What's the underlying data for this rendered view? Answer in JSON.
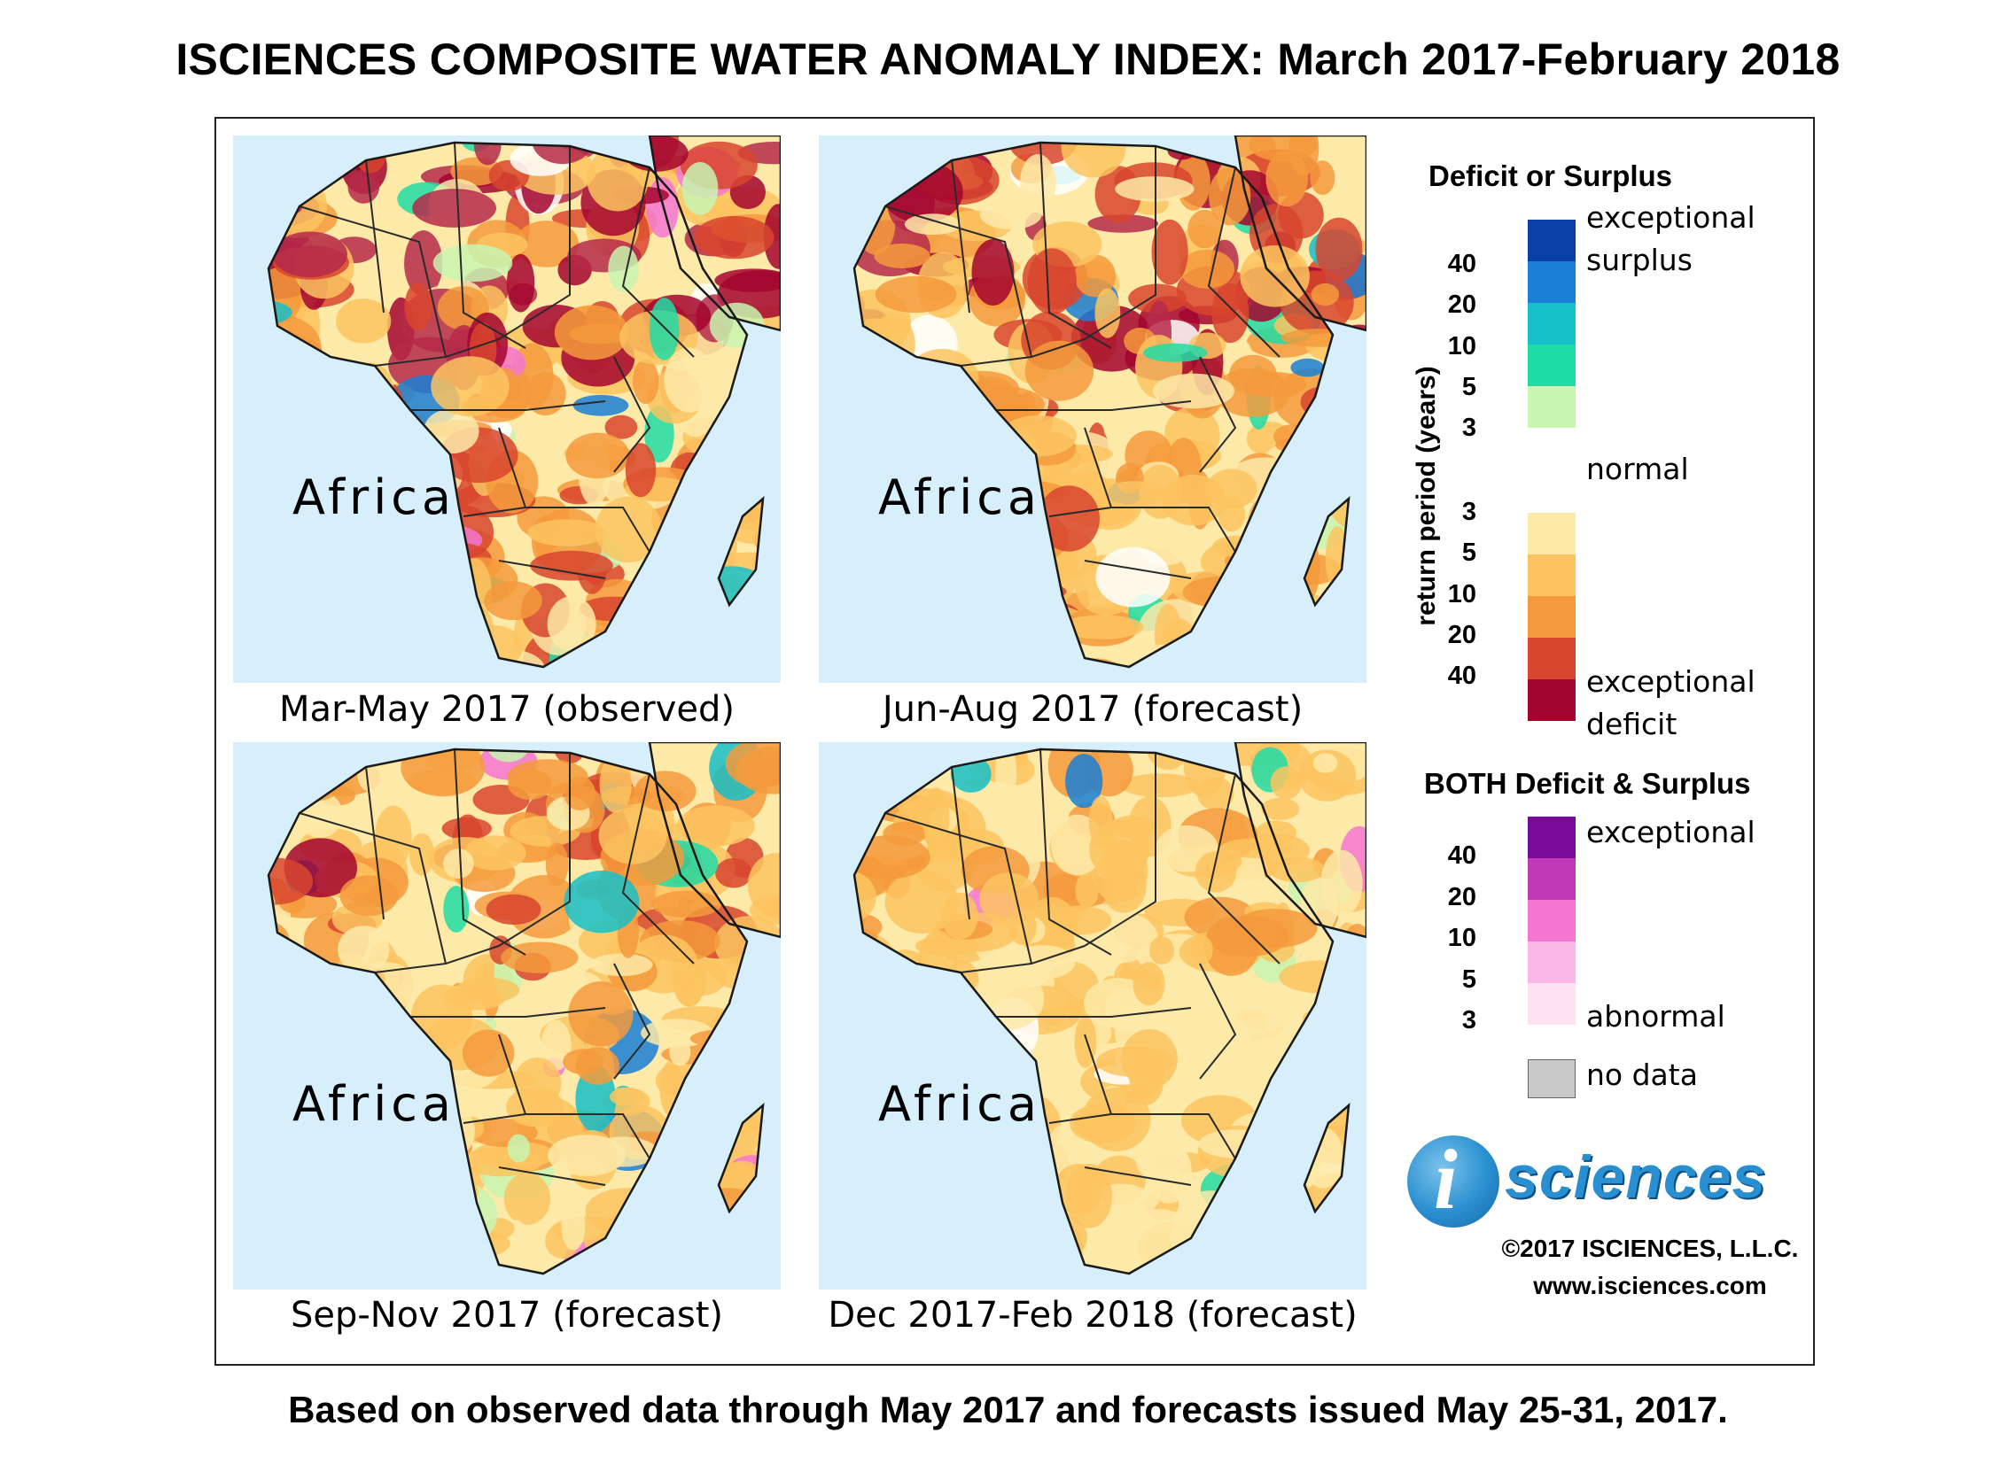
{
  "title": "ISCIENCES COMPOSITE WATER ANOMALY INDEX: March 2017-February 2018",
  "panels": [
    {
      "region": "Africa",
      "caption": "Mar-May 2017 (observed)",
      "intensity": 0.95
    },
    {
      "region": "Africa",
      "caption": "Jun-Aug 2017 (forecast)",
      "intensity": 0.8
    },
    {
      "region": "Africa",
      "caption": "Sep-Nov 2017 (forecast)",
      "intensity": 0.55
    },
    {
      "region": "Africa",
      "caption": "Dec 2017-Feb 2018 (forecast)",
      "intensity": 0.35
    }
  ],
  "legend": {
    "deficit_surplus": {
      "title": "Deficit or Surplus",
      "axis_label": "return period (years)",
      "surplus_ticks": [
        "40",
        "20",
        "10",
        "5",
        "3"
      ],
      "deficit_ticks": [
        "3",
        "5",
        "10",
        "20",
        "40"
      ],
      "labels": {
        "exceptional_surplus_1": "exceptional",
        "exceptional_surplus_2": "surplus",
        "normal": "normal",
        "exceptional_deficit_1": "exceptional",
        "exceptional_deficit_2": "deficit"
      },
      "surplus_colors": [
        "#0a3fa8",
        "#1a7fd6",
        "#16c0c8",
        "#20dca6",
        "#c8f5b0"
      ],
      "normal_color": "#ffffff",
      "deficit_colors": [
        "#fde9a8",
        "#fbc460",
        "#f59a3c",
        "#d8452e",
        "#a3052f"
      ]
    },
    "both": {
      "title": "BOTH Deficit & Surplus",
      "ticks": [
        "40",
        "20",
        "10",
        "5",
        "3"
      ],
      "labels": {
        "top": "exceptional",
        "bottom": "abnormal"
      },
      "colors": [
        "#7a0a99",
        "#c03ab8",
        "#f476d2",
        "#fbb8e8",
        "#fde2f2"
      ]
    },
    "no_data": {
      "label": "no data",
      "color": "#c8c8c8"
    }
  },
  "logo": {
    "i": "i",
    "text": "sciences"
  },
  "copyright": "©2017 ISCIENCES, L.L.C.",
  "website": "www.isciences.com",
  "footer": "Based on observed data through May 2017 and forecasts issued May 25-31, 2017."
}
